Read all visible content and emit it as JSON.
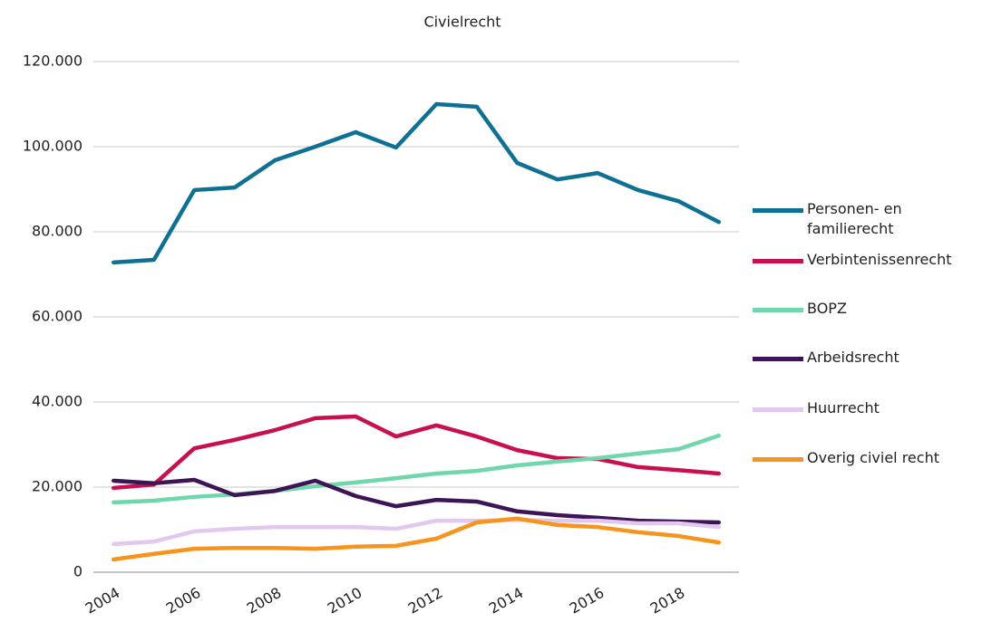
{
  "chart_data": {
    "type": "line",
    "title": "Civielrecht",
    "categories": [
      "2004",
      null,
      "2006",
      null,
      "2008",
      null,
      "2010",
      null,
      "2012",
      null,
      "2014",
      null,
      "2016",
      null,
      "2018",
      null
    ],
    "series": [
      {
        "name": "Personen- en familierecht",
        "color": "#0e7194",
        "values": [
          72800,
          73400,
          89800,
          90400,
          96800,
          100000,
          103400,
          99800,
          110000,
          109400,
          96200,
          92300,
          93800,
          89800,
          87200,
          82300
        ]
      },
      {
        "name": "Verbintenissenrecht",
        "color": "#c8104e",
        "values": [
          19800,
          20600,
          29100,
          31100,
          33400,
          36200,
          36600,
          31900,
          34500,
          31900,
          28700,
          26800,
          26600,
          24700,
          24000,
          23200
        ]
      },
      {
        "name": "BOPZ",
        "color": "#6fd7a9",
        "values": [
          16400,
          16800,
          17700,
          18300,
          19100,
          20200,
          21100,
          22100,
          23200,
          23800,
          25100,
          26000,
          26800,
          27900,
          28900,
          32100
        ]
      },
      {
        "name": "Arbeidsrecht",
        "color": "#3d1556",
        "values": [
          21500,
          20900,
          21700,
          18100,
          19100,
          21500,
          17900,
          15500,
          17000,
          16600,
          14300,
          13400,
          12800,
          12100,
          11900,
          11700
        ]
      },
      {
        "name": "Huurrecht",
        "color": "#e2c8ee",
        "values": [
          6600,
          7200,
          9600,
          10200,
          10600,
          10600,
          10600,
          10200,
          12100,
          12100,
          12300,
          12100,
          12100,
          11500,
          11500,
          10600
        ]
      },
      {
        "name": "Overig civiel recht",
        "color": "#f7941d",
        "values": [
          3000,
          4300,
          5500,
          5700,
          5700,
          5500,
          6000,
          6200,
          7900,
          11700,
          12600,
          11100,
          10600,
          9400,
          8500,
          7000
        ]
      }
    ],
    "ylim": [
      0,
      120000
    ],
    "yticks": [
      0,
      {
        "value": 20000,
        "label": "20.000"
      },
      {
        "value": 40000,
        "label": "40.000"
      },
      {
        "value": 60000,
        "label": "60.000"
      },
      {
        "value": 80000,
        "label": "80.000"
      },
      {
        "value": 100000,
        "label": "100.000"
      },
      {
        "value": 120000,
        "label": "120.000"
      }
    ],
    "grid": true,
    "legend": "right"
  }
}
